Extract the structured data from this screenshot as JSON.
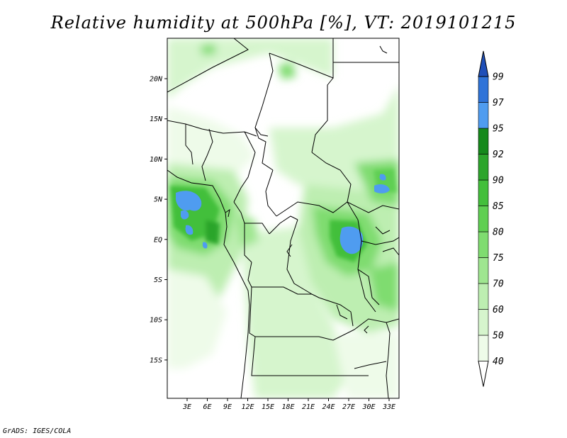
{
  "title": "Relative humidity at 500hPa [%], VT: 2019101215",
  "credit": "GrADS: IGES/COLA",
  "map": {
    "lon_range": [
      0,
      35
    ],
    "lat_range": [
      -20,
      25
    ],
    "x_ticks": [
      "3E",
      "6E",
      "9E",
      "12E",
      "15E",
      "18E",
      "21E",
      "24E",
      "27E",
      "30E",
      "33E"
    ],
    "y_ticks": [
      "20N",
      "15N",
      "10N",
      "5N",
      "EQ",
      "5S",
      "10S",
      "15S"
    ]
  },
  "colorbar": {
    "levels": [
      "40",
      "50",
      "60",
      "70",
      "75",
      "80",
      "85",
      "90",
      "92",
      "95",
      "97",
      "99"
    ],
    "colors": [
      "#ffffff",
      "#eefbe9",
      "#d6f5cd",
      "#bdeeb1",
      "#9fe690",
      "#7fdc70",
      "#5fcf52",
      "#43bf3b",
      "#2ca52b",
      "#15891b",
      "#4f9cf0",
      "#2f73d8",
      "#1f4fb8"
    ]
  }
}
